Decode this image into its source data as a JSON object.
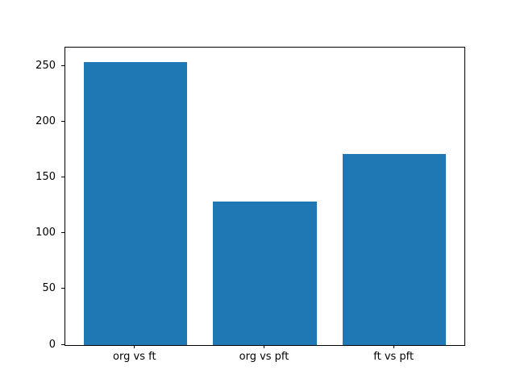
{
  "chart_data": {
    "type": "bar",
    "title": "",
    "xlabel": "",
    "ylabel": "",
    "categories": [
      "org vs ft",
      "org vs pft",
      "ft vs pft"
    ],
    "values": [
      254,
      129,
      171
    ],
    "bar_color": "#1f77b4",
    "background_color": "#ffffff",
    "axis_color": "#000000",
    "ylim": [
      0,
      266.7
    ],
    "xlim": [
      -0.54,
      2.54
    ],
    "yticks": [
      0,
      50,
      100,
      150,
      200,
      250
    ],
    "bar_width_fraction": 0.8,
    "grid": false,
    "legend": null
  }
}
